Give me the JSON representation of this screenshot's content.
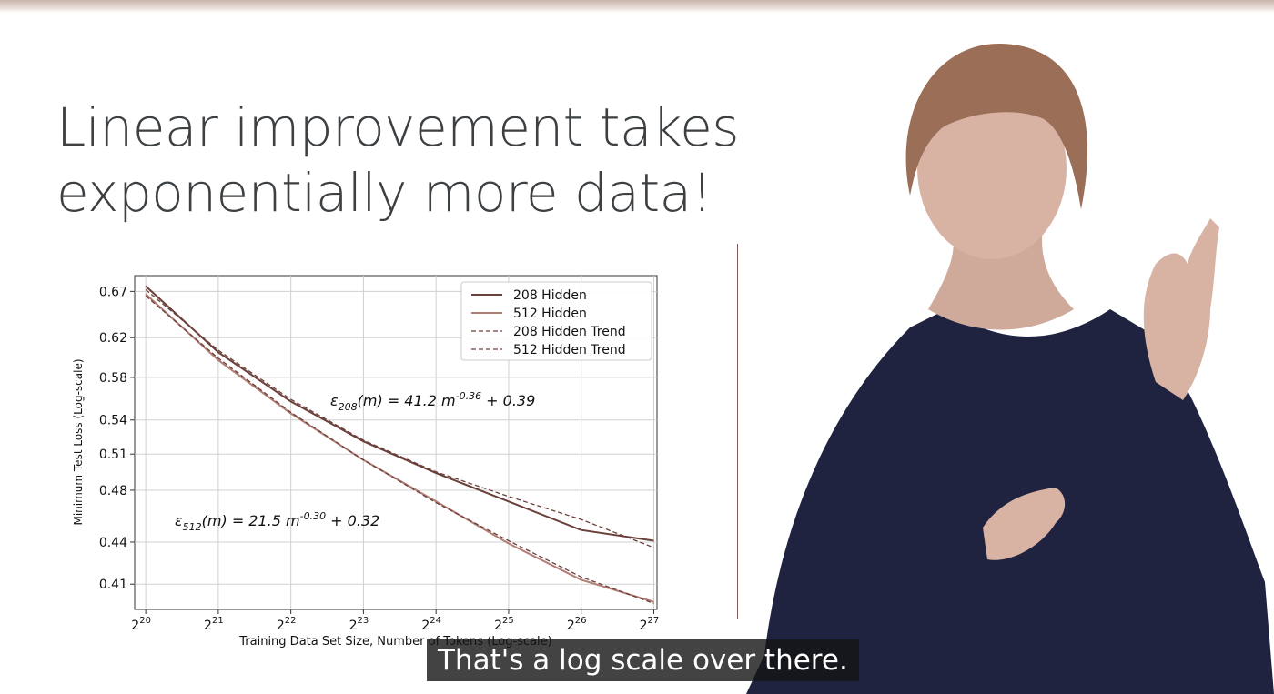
{
  "slide": {
    "title_line1": "Linear improvement takes",
    "title_line2": "exponentially more data!"
  },
  "caption": "That's a log scale over there.",
  "colors": {
    "title": "#3c4043",
    "series_208": "#6b3f3a",
    "series_512": "#b07d74",
    "caption_bg": "#141414",
    "divider": "#7d5a53"
  },
  "chart_data": {
    "type": "line",
    "title": "",
    "xlabel": "Training Data Set Size, Number of Tokens (Log-scale)",
    "ylabel": "Minimum Test Loss (Log-scale)",
    "x_scale": "log2",
    "y_scale": "log",
    "xlim": [
      943718,
      138412872
    ],
    "ylim": [
      0.393,
      0.688
    ],
    "x_ticks": [
      {
        "value": 1048576,
        "base": "2",
        "exp": "20"
      },
      {
        "value": 2097152,
        "base": "2",
        "exp": "21"
      },
      {
        "value": 4194304,
        "base": "2",
        "exp": "22"
      },
      {
        "value": 8388608,
        "base": "2",
        "exp": "23"
      },
      {
        "value": 16777216,
        "base": "2",
        "exp": "24"
      },
      {
        "value": 33554432,
        "base": "2",
        "exp": "25"
      },
      {
        "value": 67108864,
        "base": "2",
        "exp": "26"
      },
      {
        "value": 134217728,
        "base": "2",
        "exp": "27"
      }
    ],
    "y_ticks": [
      {
        "value": 0.41,
        "label": "0.41"
      },
      {
        "value": 0.44,
        "label": "0.44"
      },
      {
        "value": 0.48,
        "label": "0.48"
      },
      {
        "value": 0.51,
        "label": "0.51"
      },
      {
        "value": 0.54,
        "label": "0.54"
      },
      {
        "value": 0.58,
        "label": "0.58"
      },
      {
        "value": 0.62,
        "label": "0.62"
      },
      {
        "value": 0.67,
        "label": "0.67"
      }
    ],
    "grid": true,
    "legend_position": "top-right",
    "series": [
      {
        "name": "208 Hidden",
        "style": "solid",
        "color": "#6b3f3a",
        "x": [
          1048576,
          2097152,
          4194304,
          8388608,
          16777216,
          33554432,
          67108864,
          134217728
        ],
        "y": [
          0.676,
          0.605,
          0.557,
          0.521,
          0.494,
          0.471,
          0.449,
          0.441
        ]
      },
      {
        "name": "512 Hidden",
        "style": "solid",
        "color": "#b07d74",
        "x": [
          1048576,
          2097152,
          4194304,
          8388608,
          16777216,
          33554432,
          67108864,
          134217728
        ],
        "y": [
          0.667,
          0.597,
          0.546,
          0.505,
          0.471,
          0.439,
          0.413,
          0.398
        ]
      },
      {
        "name": "208 Hidden Trend",
        "style": "dashed",
        "color": "#6b3f3a",
        "x": [
          1048576,
          2097152,
          4194304,
          8388608,
          16777216,
          33554432,
          67108864,
          134217728
        ],
        "y": [
          0.672,
          0.607,
          0.559,
          0.522,
          0.495,
          0.475,
          0.457,
          0.436
        ]
      },
      {
        "name": "512 Hidden Trend",
        "style": "dashed",
        "color": "#6b3f3a",
        "x": [
          1048576,
          2097152,
          4194304,
          8388608,
          16777216,
          33554432,
          67108864,
          134217728
        ],
        "y": [
          0.665,
          0.599,
          0.547,
          0.505,
          0.47,
          0.441,
          0.415,
          0.397
        ]
      }
    ],
    "annotations": [
      {
        "id": "eq208",
        "sym": "ε",
        "sub": "208",
        "mid": "(m) = 41.2 m",
        "sup": "-0.36",
        "tail": " + 0.39"
      },
      {
        "id": "eq512",
        "sym": "ε",
        "sub": "512",
        "mid": "(m) = 21.5 m",
        "sup": "-0.30",
        "tail": " + 0.32"
      }
    ]
  }
}
